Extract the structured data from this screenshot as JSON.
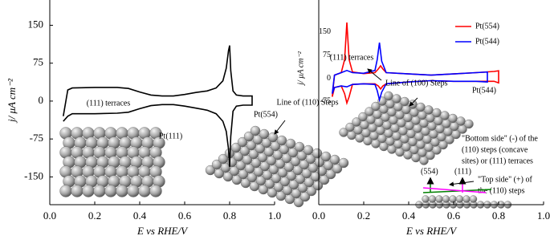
{
  "chart_data": [
    {
      "type": "line",
      "xlabel": "E vs RHE/V",
      "ylabel": "j/ μA cm⁻²",
      "xlim": [
        0,
        1
      ],
      "ylim": [
        -205,
        200
      ],
      "xticks": [
        {
          "value": 0,
          "label": "0.0"
        },
        {
          "value": 0.2,
          "label": "0.2"
        },
        {
          "value": 0.4,
          "label": "0.4"
        },
        {
          "value": 0.6,
          "label": "0.6"
        },
        {
          "value": 0.8,
          "label": "0.8"
        },
        {
          "value": 1,
          "label": "1.0"
        }
      ],
      "yticks": [
        -150,
        -75,
        0,
        75,
        150
      ],
      "color": "#000000",
      "x": [
        0.06,
        0.08,
        0.1,
        0.2,
        0.3,
        0.35,
        0.4,
        0.45,
        0.5,
        0.55,
        0.6,
        0.65,
        0.7,
        0.74,
        0.77,
        0.785,
        0.795,
        0.8,
        0.805,
        0.815,
        0.83,
        0.86,
        0.9,
        0.9,
        0.86,
        0.83,
        0.815,
        0.805,
        0.8,
        0.795,
        0.785,
        0.77,
        0.74,
        0.7,
        0.65,
        0.6,
        0.55,
        0.5,
        0.45,
        0.4,
        0.35,
        0.3,
        0.2,
        0.1,
        0.08,
        0.06
      ],
      "values": [
        -30,
        22,
        26,
        27,
        27,
        25,
        18,
        12,
        10,
        10,
        13,
        17,
        20,
        26,
        40,
        65,
        100,
        110,
        60,
        20,
        12,
        10,
        10,
        -8,
        -8,
        -10,
        -20,
        -70,
        -130,
        -95,
        -60,
        -40,
        -25,
        -18,
        -14,
        -10,
        -7,
        -7,
        -9,
        -15,
        -22,
        -24,
        -25,
        -25,
        -30,
        -40
      ],
      "annotations": [
        "(111) terraces",
        "Pt(111)"
      ]
    },
    {
      "type": "line",
      "xlabel": "E vs RHE/V",
      "xlim": [
        0,
        1
      ],
      "xticks": [
        {
          "value": 0,
          "label": "0.0"
        },
        {
          "value": 0.2,
          "label": "0.2"
        },
        {
          "value": 0.4,
          "label": "0.4"
        },
        {
          "value": 0.6,
          "label": "0.6"
        },
        {
          "value": 0.8,
          "label": "0.8"
        },
        {
          "value": 1,
          "label": "1.0"
        }
      ],
      "annotations": [
        "Line of (100) Steps",
        "Pt(544)",
        "Line of (110) Steps",
        "Pt(554)",
        "\"Bottom side\" (-) of the",
        "(110) steps (concave",
        "sites) or (111) terraces",
        "(554)",
        "(111)",
        "\"Top side\" (+) of",
        "the (110) steps"
      ]
    },
    {
      "type": "line",
      "ylabel": "j/ μA cm⁻²",
      "xlim": [
        0,
        1
      ],
      "ylim": [
        -100,
        175
      ],
      "yticks": [
        -75,
        0,
        75,
        150
      ],
      "annotations": [
        "(111) terraces"
      ],
      "series": [
        {
          "name": "Pt(554)",
          "color": "#ff0000",
          "x": [
            0.06,
            0.07,
            0.1,
            0.115,
            0.125,
            0.135,
            0.15,
            0.2,
            0.25,
            0.265,
            0.275,
            0.285,
            0.3,
            0.4,
            0.5,
            0.6,
            0.7,
            0.78,
            0.8,
            0.8,
            0.78,
            0.7,
            0.6,
            0.5,
            0.4,
            0.3,
            0.285,
            0.275,
            0.265,
            0.25,
            0.2,
            0.15,
            0.135,
            0.125,
            0.115,
            0.1,
            0.07,
            0.06
          ],
          "values": [
            -60,
            10,
            18,
            60,
            180,
            60,
            20,
            15,
            18,
            30,
            40,
            30,
            18,
            14,
            10,
            14,
            18,
            22,
            24,
            -15,
            -10,
            -10,
            -10,
            -8,
            -12,
            -18,
            -25,
            -35,
            -25,
            -18,
            -18,
            -20,
            -60,
            -80,
            -50,
            -25,
            -30,
            -60
          ]
        },
        {
          "name": "Pt(544)",
          "color": "#0000ff",
          "x": [
            0.06,
            0.07,
            0.1,
            0.125,
            0.15,
            0.2,
            0.25,
            0.26,
            0.27,
            0.28,
            0.3,
            0.4,
            0.5,
            0.6,
            0.7,
            0.75,
            0.75,
            0.7,
            0.6,
            0.5,
            0.4,
            0.3,
            0.28,
            0.27,
            0.26,
            0.25,
            0.2,
            0.15,
            0.125,
            0.1,
            0.07,
            0.06
          ],
          "values": [
            -50,
            10,
            18,
            25,
            18,
            16,
            25,
            60,
            115,
            55,
            18,
            14,
            10,
            14,
            18,
            20,
            -12,
            -10,
            -10,
            -8,
            -12,
            -18,
            -45,
            -70,
            -40,
            -20,
            -18,
            -20,
            -28,
            -25,
            -30,
            -50
          ]
        }
      ]
    }
  ]
}
